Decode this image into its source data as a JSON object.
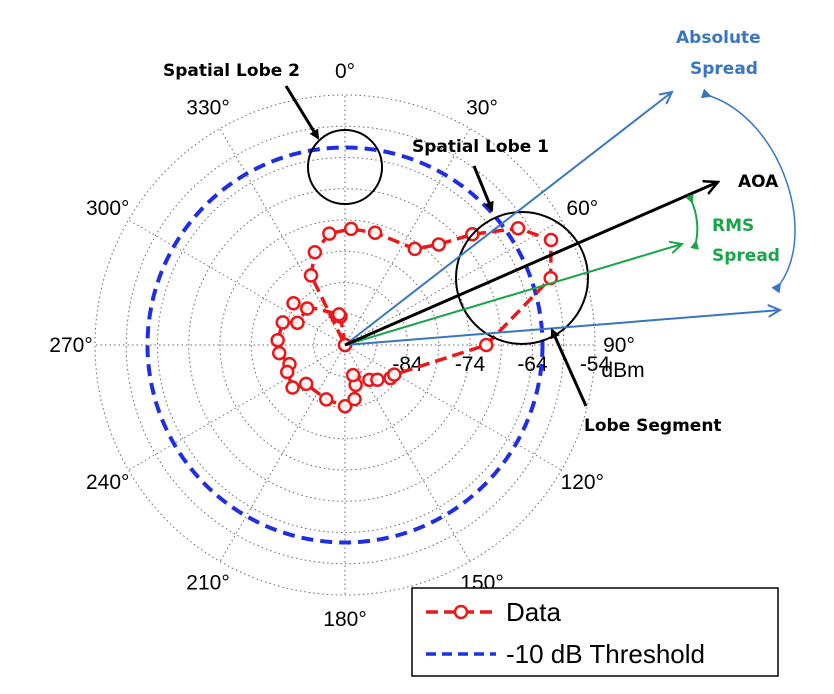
{
  "chart_data": {
    "type": "polar",
    "r_unit": "dBm",
    "r_ticks": [
      -84,
      -74,
      -64,
      -54
    ],
    "r_range": [
      -94,
      -54
    ],
    "angle_ticks_deg": [
      0,
      30,
      60,
      90,
      120,
      150,
      180,
      210,
      240,
      270,
      300,
      330
    ],
    "angle_labels": [
      "0°",
      "30°",
      "60°",
      "90°",
      "120°",
      "150°",
      "180°",
      "210°",
      "240°",
      "270°",
      "300°",
      "330°"
    ],
    "series": [
      {
        "name": "Data",
        "color": "#e8191a",
        "style": "dash-circle-markers",
        "points": [
          {
            "angle": 0,
            "r": -94
          },
          {
            "angle": 0,
            "r": -94
          },
          {
            "angle": 351,
            "r": -89.4
          },
          {
            "angle": 349,
            "r": -89
          },
          {
            "angle": 309,
            "r": -83.4
          },
          {
            "angle": 314,
            "r": -85.6
          },
          {
            "angle": 295,
            "r": -85.6
          },
          {
            "angle": 290,
            "r": -83.4
          },
          {
            "angle": 274,
            "r": -83.2
          },
          {
            "angle": 263,
            "r": -83.4
          },
          {
            "angle": 251,
            "r": -84.6
          },
          {
            "angle": 245,
            "r": -83.8
          },
          {
            "angle": 231,
            "r": -83.2
          },
          {
            "angle": 225,
            "r": -85.2
          },
          {
            "angle": 199,
            "r": -84.8
          },
          {
            "angle": 180,
            "r": -84.2
          },
          {
            "angle": 170,
            "r": -85.2
          },
          {
            "angle": 165,
            "r": -87.4
          },
          {
            "angle": 165,
            "r": -89.0
          },
          {
            "angle": 145,
            "r": -87.2
          },
          {
            "angle": 137,
            "r": -86.4
          },
          {
            "angle": 126,
            "r": -85.0
          },
          {
            "angle": 121,
            "r": -84.8
          },
          {
            "angle": 90,
            "r": -71.4
          },
          {
            "angle": 72,
            "r": -59.4
          },
          {
            "angle": 63,
            "r": -57.0
          },
          {
            "angle": 56,
            "r": -60.6
          },
          {
            "angle": 49,
            "r": -67.0
          },
          {
            "angle": 43,
            "r": -72.0
          },
          {
            "angle": 36,
            "r": -75.0
          },
          {
            "angle": 15,
            "r": -75.4
          },
          {
            "angle": 3,
            "r": -75.4
          },
          {
            "angle": 352,
            "r": -76.0
          },
          {
            "angle": 342,
            "r": -78.4
          },
          {
            "angle": 334,
            "r": -81.6
          },
          {
            "angle": 0,
            "r": -94
          }
        ]
      },
      {
        "name": "-10 dB Threshold",
        "color": "#1f2fe0",
        "style": "dashed",
        "r": -62.4
      }
    ],
    "annotations": {
      "spatial_lobe_2": "Spatial Lobe 2",
      "spatial_lobe_1": "Spatial Lobe 1",
      "lobe_segment": "Lobe Segment",
      "absolute_spread_1": "Absolute",
      "absolute_spread_2": "Spread",
      "aoa": "AOA",
      "rms_spread_1": "RMS",
      "rms_spread_2": "Spread"
    },
    "colors": {
      "absolute_arrow": "#3a76c0",
      "rms_arrow": "#1aa54a",
      "aoa_arrow": "#000000"
    },
    "legend_position": "bottom-right",
    "grid": true
  }
}
